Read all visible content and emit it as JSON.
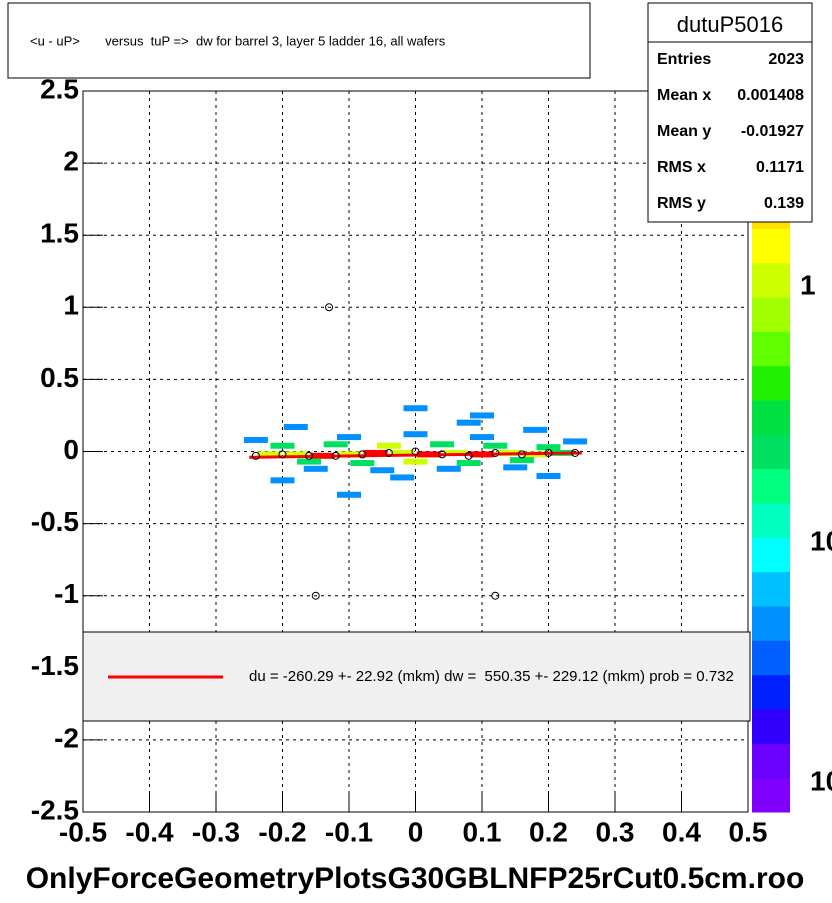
{
  "chart_data": {
    "type": "hist2d",
    "title": "<u - uP>       versus  tuP =>  dw for barrel 3, layer 5 ladder 16, all wafers",
    "xlabel": "OnlyForceGeometryPlotsG30GBLNFP25rCut0.5cm.roo",
    "xlim": [
      -0.5,
      0.5
    ],
    "ylim": [
      -2.5,
      2.5
    ],
    "xticks": [
      -0.5,
      -0.4,
      -0.3,
      -0.2,
      -0.1,
      0,
      0.1,
      0.2,
      0.3,
      0.4,
      0.5
    ],
    "yticks": [
      -2.5,
      -2,
      -1.5,
      -1,
      -0.5,
      0,
      0.5,
      1,
      1.5,
      2,
      2.5
    ],
    "grid": true,
    "cells": {
      "x": [
        -0.22,
        -0.18,
        -0.14,
        -0.1,
        -0.06,
        -0.02,
        0.02,
        0.06,
        0.1,
        0.14,
        0.18,
        0.22,
        -0.2,
        -0.12,
        -0.04,
        0.04,
        0.12,
        0.2,
        -0.16,
        -0.08,
        0,
        0.08,
        0.16,
        -0.24,
        -0.1,
        0.0,
        0.1,
        0.24,
        -0.05,
        0.05,
        0.15,
        -0.15,
        -0.18,
        0.18,
        -0.02,
        0.08,
        -0.2,
        0.0,
        0.2,
        -0.1,
        0.1
      ],
      "y": [
        -0.02,
        -0.02,
        -0.03,
        -0.02,
        -0.01,
        -0.01,
        -0.02,
        -0.01,
        -0.02,
        -0.01,
        -0.02,
        -0.01,
        0.04,
        0.05,
        0.04,
        0.05,
        0.04,
        0.03,
        -0.07,
        -0.08,
        -0.07,
        -0.08,
        -0.06,
        0.08,
        0.1,
        0.12,
        0.1,
        0.07,
        -0.13,
        -0.12,
        -0.11,
        -0.12,
        0.17,
        0.15,
        -0.18,
        0.2,
        -0.2,
        0.3,
        -0.17,
        -0.3,
        0.25
      ],
      "z": [
        3,
        3,
        4,
        3,
        4,
        3,
        4,
        3,
        4,
        3,
        3,
        2,
        2,
        2,
        3,
        2,
        2,
        2,
        2,
        2,
        3,
        2,
        2,
        1,
        1,
        1,
        1,
        1,
        1,
        1,
        1,
        1,
        1,
        1,
        1,
        1,
        1,
        1,
        1,
        1,
        1
      ]
    },
    "zlim": [
      0,
      4
    ],
    "palette": [
      "#8000ff",
      "#6a00ff",
      "#3000ff",
      "#0020ff",
      "#0060ff",
      "#0090ff",
      "#00c0ff",
      "#00ffff",
      "#00ffc0",
      "#00ff80",
      "#00e060",
      "#00e040",
      "#20f000",
      "#60ff00",
      "#a0ff00",
      "#d0ff00",
      "#ffff00",
      "#ffe000",
      "#ffb000",
      "#ff6000",
      "#ff0000"
    ],
    "colorbar_labels": [
      "1",
      "10",
      "10"
    ],
    "profile": {
      "x": [
        -0.24,
        -0.2,
        -0.16,
        -0.12,
        -0.08,
        -0.04,
        0,
        0.04,
        0.08,
        0.12,
        0.16,
        0.2,
        0.24
      ],
      "y": [
        -0.03,
        -0.02,
        -0.03,
        -0.03,
        -0.02,
        -0.01,
        0,
        -0.02,
        -0.03,
        -0.01,
        -0.02,
        -0.01,
        -0.01
      ]
    },
    "outliers": {
      "x": [
        -0.13,
        -0.15,
        0.12
      ],
      "y": [
        1,
        -1,
        -1
      ]
    },
    "fit": {
      "x": [
        -0.25,
        0.25
      ],
      "y": [
        -0.04,
        -0.01
      ],
      "color": "#ff0000"
    },
    "legend": "du = -260.29 +- 22.92 (mkm) dw =  550.35 +- 229.12 (mkm) prob = 0.732",
    "stats": {
      "name": "dutuP5016",
      "rows": [
        [
          "Entries",
          "2023"
        ],
        [
          "Mean x",
          "0.001408"
        ],
        [
          "Mean y",
          "-0.01927"
        ],
        [
          "RMS x",
          "0.1171"
        ],
        [
          "RMS y",
          "0.139"
        ]
      ]
    }
  }
}
